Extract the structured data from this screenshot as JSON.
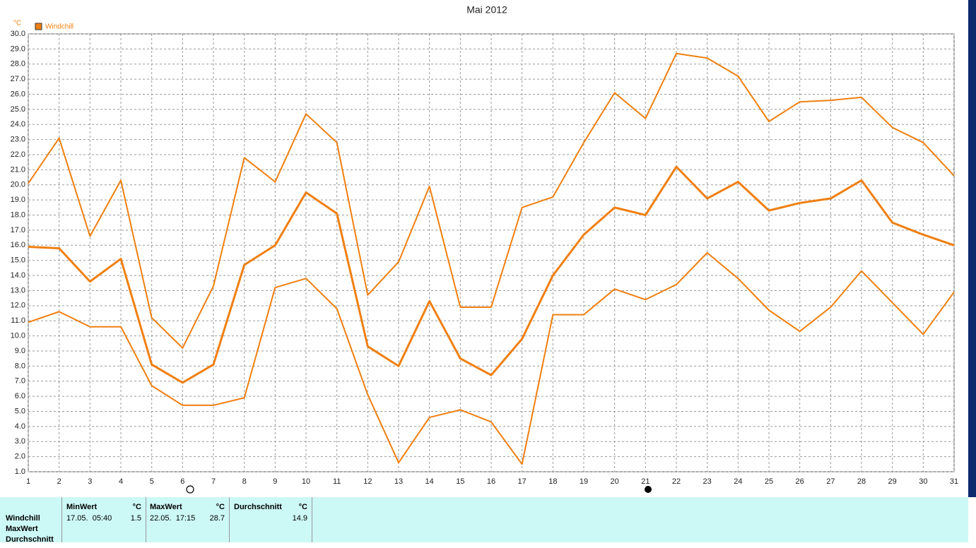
{
  "chart_data": {
    "type": "line",
    "title": "Mai 2012",
    "y_unit": "°C",
    "legend": "Windchill",
    "legend_color": "#f07f10",
    "x": [
      1,
      2,
      3,
      4,
      5,
      6,
      7,
      8,
      9,
      10,
      11,
      12,
      13,
      14,
      15,
      16,
      17,
      18,
      19,
      20,
      21,
      22,
      23,
      24,
      25,
      26,
      27,
      28,
      29,
      30,
      31
    ],
    "series": [
      {
        "color": "#f07f10",
        "width": 2,
        "values": [
          20.1,
          23.1,
          16.6,
          20.3,
          11.2,
          9.2,
          13.3,
          21.8,
          20.2,
          24.7,
          22.8,
          12.7,
          14.9,
          19.9,
          11.9,
          11.9,
          18.5,
          19.2,
          22.8,
          26.1,
          24.4,
          28.7,
          28.4,
          27.2,
          24.2,
          25.5,
          25.6,
          25.8,
          23.8,
          22.8,
          20.6
        ]
      },
      {
        "color": "#f07f10",
        "width": 3,
        "values": [
          15.9,
          15.8,
          13.6,
          15.1,
          8.1,
          6.9,
          8.1,
          14.7,
          16.0,
          19.5,
          18.1,
          9.3,
          8.0,
          12.3,
          8.5,
          7.4,
          9.8,
          14.0,
          16.7,
          18.5,
          18.0,
          21.2,
          19.1,
          20.2,
          18.3,
          18.8,
          19.1,
          20.3,
          17.5,
          16.7,
          16.0
        ]
      },
      {
        "color": "#f07f10",
        "width": 2,
        "values": [
          10.9,
          11.6,
          10.6,
          10.6,
          6.7,
          5.4,
          5.4,
          5.9,
          13.2,
          13.8,
          11.8,
          6.1,
          1.6,
          4.6,
          5.1,
          4.3,
          1.5,
          11.4,
          11.4,
          13.1,
          12.4,
          13.4,
          15.5,
          13.8,
          11.7,
          10.3,
          11.9,
          14.3,
          12.2,
          10.1,
          12.9
        ]
      }
    ],
    "xlim": [
      1,
      31
    ],
    "xticks": [
      1,
      2,
      3,
      4,
      5,
      6,
      7,
      8,
      9,
      10,
      11,
      12,
      13,
      14,
      15,
      16,
      17,
      18,
      19,
      20,
      21,
      22,
      23,
      24,
      25,
      26,
      27,
      28,
      29,
      30,
      31
    ],
    "ylim": [
      1,
      30
    ],
    "yticks": [
      {
        "value": 1,
        "label": "1.0"
      },
      {
        "value": 2,
        "label": "2.0"
      },
      {
        "value": 3,
        "label": "3.0"
      },
      {
        "value": 4,
        "label": "4.0"
      },
      {
        "value": 5,
        "label": "5.0"
      },
      {
        "value": 6,
        "label": "6.0"
      },
      {
        "value": 7,
        "label": "7.0"
      },
      {
        "value": 8,
        "label": "8.0"
      },
      {
        "value": 9,
        "label": "9.0"
      },
      {
        "value": 10,
        "label": "10.0"
      },
      {
        "value": 11,
        "label": "11.0"
      },
      {
        "value": 12,
        "label": "12.0"
      },
      {
        "value": 13,
        "label": "13.0"
      },
      {
        "value": 14,
        "label": "14.0"
      },
      {
        "value": 15,
        "label": "15.0"
      },
      {
        "value": 16,
        "label": "16.0"
      },
      {
        "value": 17,
        "label": "17.0"
      },
      {
        "value": 18,
        "label": "18.0"
      },
      {
        "value": 19,
        "label": "19.0"
      },
      {
        "value": 20,
        "label": "20.0"
      },
      {
        "value": 21,
        "label": "21.0"
      },
      {
        "value": 22,
        "label": "22.0"
      },
      {
        "value": 23,
        "label": "23.0"
      },
      {
        "value": 24,
        "label": "24.0"
      },
      {
        "value": 25,
        "label": "25.0"
      },
      {
        "value": 26,
        "label": "26.0"
      },
      {
        "value": 27,
        "label": "27.0"
      },
      {
        "value": 28,
        "label": "28.0"
      },
      {
        "value": 29,
        "label": "29.0"
      },
      {
        "value": 30,
        "label": "30.0"
      }
    ],
    "grid": true
  },
  "table": {
    "row_labels": [
      "Windchill",
      "MaxWert",
      "Durchschnitt"
    ],
    "columns": [
      {
        "header": "MinWert",
        "unit": "°C",
        "time": "17.05.  05:40",
        "value": 1.5
      },
      {
        "header": "MaxWert",
        "unit": "°C",
        "time": "22.05.  17:15",
        "value": 28.7
      },
      {
        "header": "Durchschnitt",
        "unit": "°C",
        "value": 14.9
      }
    ]
  }
}
